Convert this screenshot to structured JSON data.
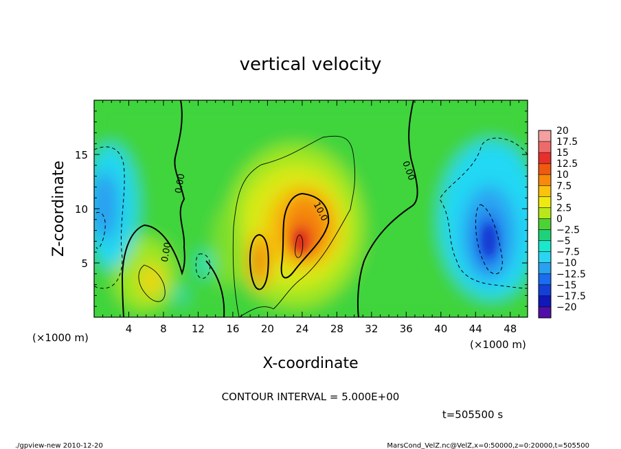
{
  "chart_data": {
    "type": "heatmap",
    "title": "vertical velocity",
    "xlabel": "X-coordinate",
    "ylabel": "Z-coordinate",
    "x_unit_left": "(×1000 m)",
    "x_unit_right": "(×1000 m)",
    "xlim": [
      0,
      50
    ],
    "ylim": [
      0,
      20
    ],
    "x_ticks": [
      4,
      8,
      12,
      16,
      20,
      24,
      28,
      32,
      36,
      40,
      44,
      48
    ],
    "y_ticks": [
      5,
      10,
      15
    ],
    "colorbar": {
      "levels": [
        "20",
        "17.5",
        "15",
        "12.5",
        "10",
        "7.5",
        "5",
        "2.5",
        "0",
        "−2.5",
        "−5",
        "−7.5",
        "−10",
        "−12.5",
        "−15",
        "−17.5",
        "−20"
      ],
      "colors": [
        "#f4a0a0",
        "#ee6a6a",
        "#e8302a",
        "#f05a10",
        "#f78a0a",
        "#fbc20e",
        "#eeea10",
        "#b8e81c",
        "#4cd235",
        "#1ed27a",
        "#19e8cc",
        "#2bd4f0",
        "#2aa0f0",
        "#1a6cf0",
        "#1440d8",
        "#1018b8",
        "#5010a8"
      ]
    },
    "features": [
      {
        "x": 23.5,
        "z": 7.5,
        "value": 15,
        "label": "10.0"
      },
      {
        "x": 19.0,
        "z": 5.5,
        "value": 12.5,
        "label": ""
      },
      {
        "x": 6.5,
        "z": 3.0,
        "value": 5,
        "label": "0.00"
      },
      {
        "x": 45.5,
        "z": 7.0,
        "value": -10,
        "label": ""
      },
      {
        "x": 1.0,
        "z": 10.0,
        "value": -7.5,
        "label": ""
      }
    ],
    "contour_labels": [
      "0.00",
      "0.00",
      "0.00",
      "10.0"
    ]
  },
  "footer": {
    "contour_interval": "CONTOUR INTERVAL = 5.000E+00",
    "time": "t=505500 s",
    "program": "./gpview-new  2010-12-20",
    "source": "MarsCond_VelZ.nc@VelZ,x=0:50000,z=0:20000,t=505500"
  }
}
